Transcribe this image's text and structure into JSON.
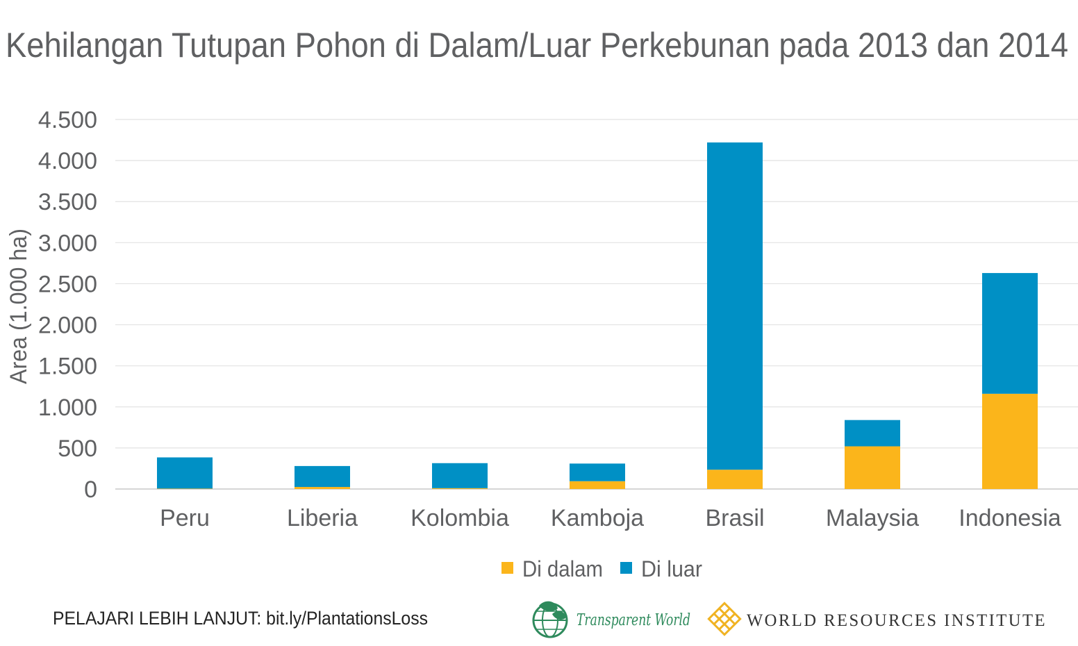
{
  "colors": {
    "inside": "#fbb51b",
    "outside": "#0090c5",
    "text": "#5f6062",
    "grid": "#e2e2e2",
    "tw_green": "#2e8a5c",
    "wri_gold": "#f0b323"
  },
  "footer": {
    "learn_more": "PELAJARI LEBIH LANJUT: bit.ly/PlantationsLoss"
  },
  "logos": {
    "transparent_world": "Transparent World",
    "wri": "WORLD RESOURCES INSTITUTE"
  },
  "icons": {
    "transparent_world": "globe-leaf-icon",
    "wri": "lattice-star-icon"
  },
  "chart_data": {
    "type": "bar",
    "stacked": true,
    "title": "Kehilangan Tutupan Pohon di Dalam/Luar Perkebunan pada 2013 dan 2014",
    "xlabel": "",
    "ylabel": "Area (1.000 ha)",
    "categories": [
      "Peru",
      "Liberia",
      "Kolombia",
      "Kamboja",
      "Brasil",
      "Malaysia",
      "Indonesia"
    ],
    "series": [
      {
        "name": "Di dalam",
        "color": "#fbb51b",
        "values": [
          5,
          25,
          10,
          95,
          235,
          520,
          1160
        ]
      },
      {
        "name": "Di luar",
        "color": "#0090c5",
        "values": [
          380,
          255,
          305,
          215,
          3985,
          320,
          1470
        ]
      }
    ],
    "ylim": [
      0,
      4500
    ],
    "yticks": [
      0,
      500,
      1000,
      1500,
      2000,
      2500,
      3000,
      3500,
      4000,
      4500
    ],
    "ytick_labels": [
      "0",
      "500",
      "1.000",
      "1.500",
      "2.000",
      "2.500",
      "3.000",
      "3.500",
      "4.000",
      "4.500"
    ],
    "grid": true,
    "legend_position": "bottom-center"
  }
}
